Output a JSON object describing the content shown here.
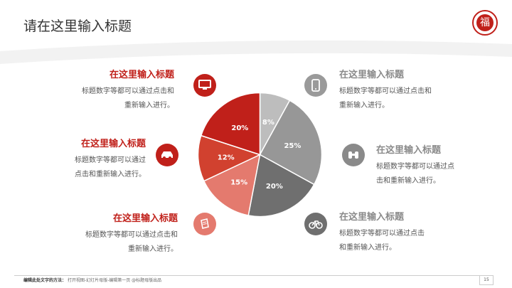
{
  "header": {
    "title": "请在这里输入标题"
  },
  "logo": {
    "glyph": "福"
  },
  "colors": {
    "accent": "#c0201a",
    "gray": "#8a8a8a"
  },
  "pie": {
    "slices": [
      {
        "label": "8%",
        "value": 8,
        "color": "#bdbdbd"
      },
      {
        "label": "25%",
        "value": 25,
        "color": "#979797"
      },
      {
        "label": "20%",
        "value": 20,
        "color": "#6f6f6f"
      },
      {
        "label": "15%",
        "value": 15,
        "color": "#e47a6e"
      },
      {
        "label": "12%",
        "value": 12,
        "color": "#d1412f"
      },
      {
        "label": "20%",
        "value": 20,
        "color": "#c0201a"
      }
    ]
  },
  "items": {
    "left_1": {
      "title": "在这里输入标题",
      "body1": "标题数字等都可以通过点击和",
      "body2": "重新输入进行。",
      "icon": "monitor-icon"
    },
    "left_2": {
      "title": "在这里输入标题",
      "body1": "标题数字等都可以通过",
      "body2": "点击和重新输入进行。",
      "icon": "car-icon"
    },
    "left_3": {
      "title": "在这里输入标题",
      "body1": "标题数字等都可以通过点击和",
      "body2": "重新输入进行。",
      "icon": "book-icon"
    },
    "right_1": {
      "title": "在这里输入标题",
      "body1": "标题数字等都可以通过点击和",
      "body2": "重新输入进行。",
      "icon": "phone-icon"
    },
    "right_2": {
      "title": "在这里输入标题",
      "body1": "标题数字等都可以通过点",
      "body2": "击和重新输入进行。",
      "icon": "binoculars-icon"
    },
    "right_3": {
      "title": "在这里输入标题",
      "body1": "标题数字等都可以通过点击",
      "body2": "和重新输入进行。",
      "icon": "bicycle-icon"
    }
  },
  "footer": {
    "strong": "编辑此处文字的方法：",
    "text": "打开视图-幻灯片母版-编辑第一页 @标题母版出品",
    "page": "15"
  }
}
